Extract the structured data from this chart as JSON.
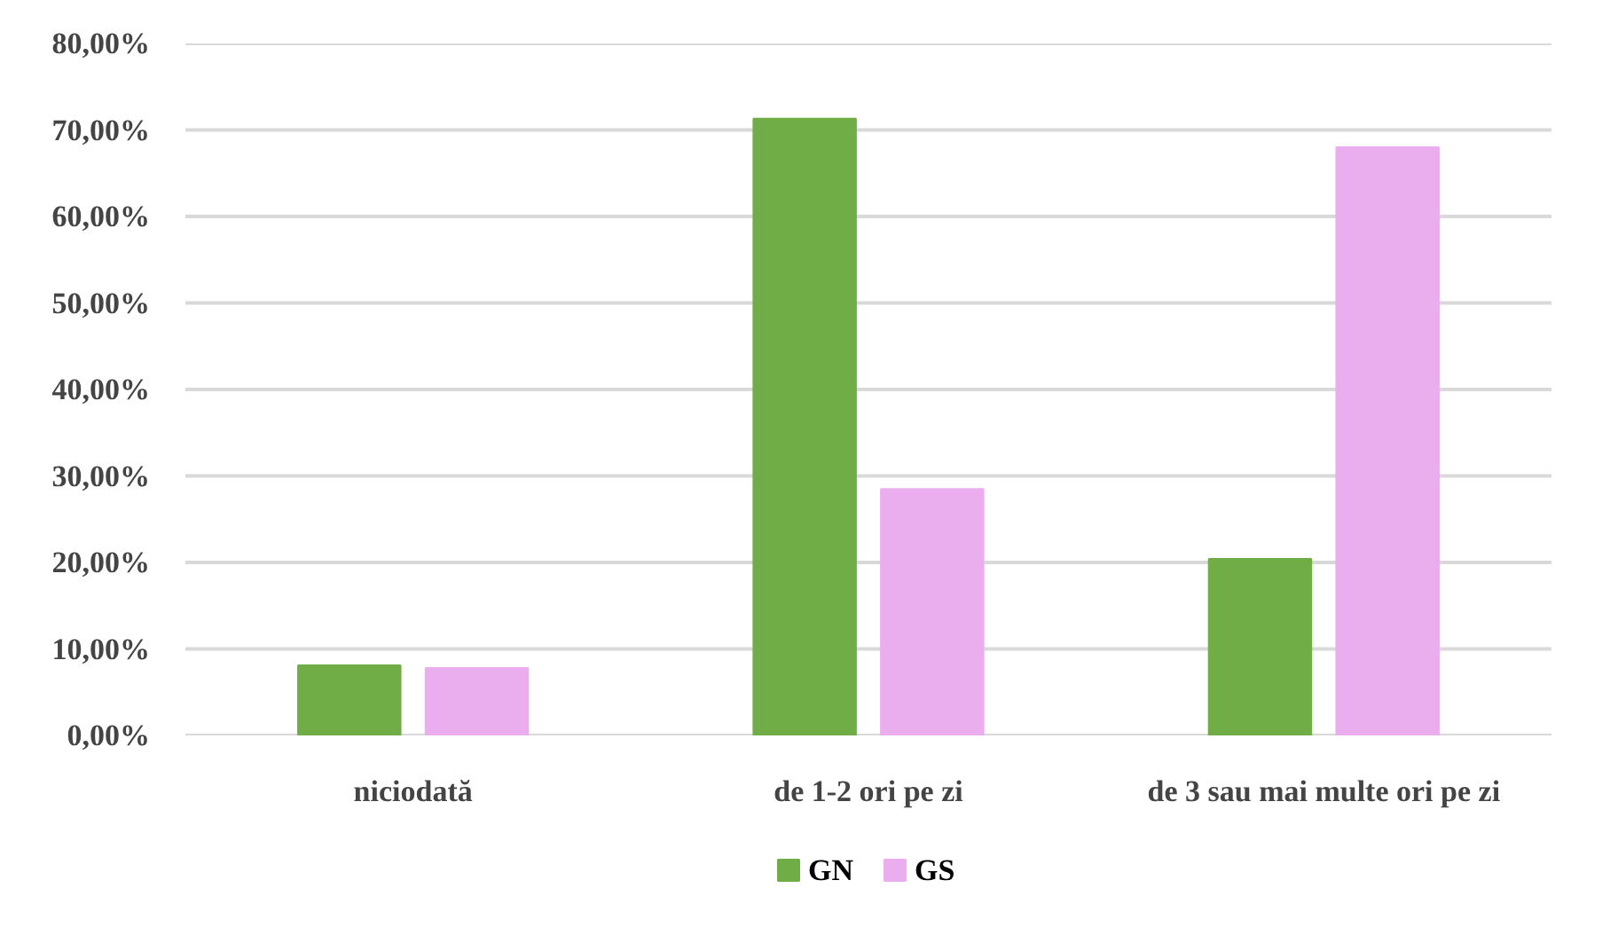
{
  "chart_data": {
    "type": "bar",
    "categories": [
      "niciodată",
      "de 1-2 ori pe zi",
      "de 3 sau mai multe ori pe zi"
    ],
    "series": [
      {
        "name": "GN",
        "color": "#70ad47",
        "values": [
          8.1,
          71.3,
          20.4
        ]
      },
      {
        "name": "GS",
        "color": "#eaadee",
        "values": [
          7.8,
          28.5,
          68.0
        ]
      }
    ],
    "ylim": [
      0,
      80
    ],
    "yticks": [
      {
        "value": 0,
        "label": "0,00%"
      },
      {
        "value": 10,
        "label": "10,00%"
      },
      {
        "value": 20,
        "label": "20,00%"
      },
      {
        "value": 30,
        "label": "30,00%"
      },
      {
        "value": 40,
        "label": "40,00%"
      },
      {
        "value": 50,
        "label": "50,00%"
      },
      {
        "value": 60,
        "label": "60,00%"
      },
      {
        "value": 70,
        "label": "70,00%"
      },
      {
        "value": 80,
        "label": "80,00%"
      }
    ],
    "grid": "y",
    "legend": "bottom"
  }
}
